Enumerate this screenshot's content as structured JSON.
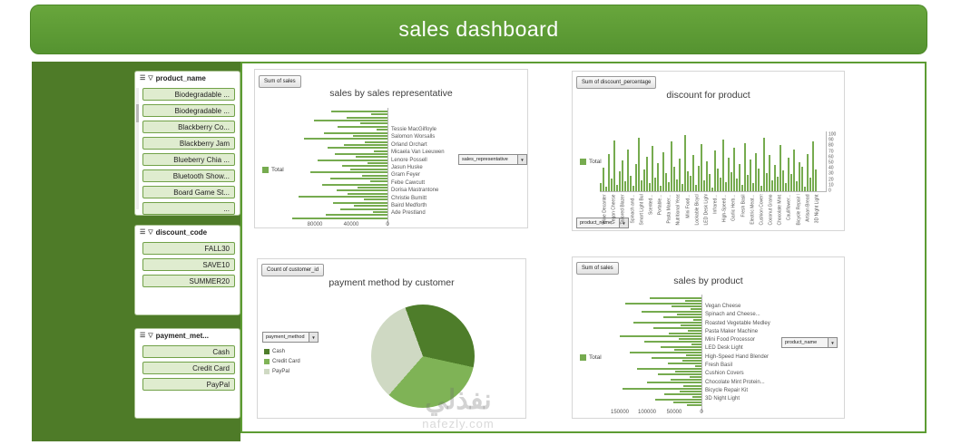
{
  "header": {
    "title": "sales dashboard"
  },
  "watermark": {
    "name": "نفذلي",
    "site": "nafezly.com"
  },
  "icons": {
    "multiselect": "☰",
    "clear_filter": "▽",
    "dropdown_arrow": "▼"
  },
  "colors": {
    "accent_green": "#5d9c33",
    "sidebar_green": "#4e7b28",
    "bar_green": "#76ab4f",
    "slicer_item_fill": "#dfeccf",
    "slicer_item_border": "#71a148",
    "header_gradient_top": "#68a63c",
    "header_gradient_bottom": "#559330"
  },
  "slicers": [
    {
      "title": "product_name",
      "items": [
        "Biodegradable ...",
        "Biodegradable ...",
        "Blackberry Co...",
        "Blackberry Jam",
        "Blueberry Chia ...",
        "Bluetooth Show...",
        "Board Game St...",
        "..."
      ]
    },
    {
      "title": "discount_code",
      "items": [
        "FALL30",
        "SAVE10",
        "SUMMER20"
      ]
    },
    {
      "title": "payment_met...",
      "items": [
        "Cash",
        "Credit Card",
        "PayPal"
      ]
    }
  ],
  "chart_data": [
    {
      "type": "bar",
      "orientation": "horizontal",
      "title": "sales by sales representative",
      "field_button": "Sum of sales",
      "dropdown": "sales_representative",
      "legend": [
        "Total"
      ],
      "axis_labels": [
        "Tessie MacGilfoyle",
        "Salomon Worsalls",
        "Orland Orchart",
        "Micaela Van Leeuwen",
        "Lenore Possell",
        "Jasun Huske",
        "Gram Feyer",
        "Febe Cawcutt",
        "Dorisa Mastrantone",
        "Christie Bumitt",
        "Baird Medforth",
        "Ade Prestland"
      ],
      "xticks": [
        80000,
        40000,
        0
      ],
      "values": [
        62000,
        18000,
        45000,
        81000,
        30000,
        55000,
        12000,
        70000,
        38000,
        92000,
        25000,
        48000,
        66000,
        15000,
        58000,
        35000,
        77000,
        22000,
        50000,
        41000,
        85000,
        28000,
        63000,
        19000,
        72000,
        33000,
        56000,
        44000,
        98000,
        26000,
        60000,
        37000,
        52000,
        16000,
        68000,
        105000
      ]
    },
    {
      "type": "bar",
      "orientation": "vertical",
      "title": "discount for product",
      "field_button": "Sum of discount_percentage",
      "dropdown": "product_name",
      "legend": [
        "Total"
      ],
      "categories": [
        "Wine Decanter",
        "Vegan Cheese",
        "Tailored Blazer",
        "Spinach and...",
        "Smart Light Bulbs",
        "Scented...",
        "Portable...",
        "Pasta Maker...",
        "Nutritional Yeast",
        "Mini Food...",
        "Lockable Bicycle...",
        "LED Desk Light",
        "Infrared...",
        "High-Speed...",
        "Garlic Herb...",
        "Fresh Basil",
        "Electric Meat...",
        "Cushion Covers",
        "Coconut Granola",
        "Chocolate Mint...",
        "Cauliflower...",
        "Bicycle Repair Kit",
        "Artisan Bread",
        "3D Night Light"
      ],
      "yticks": [
        100,
        90,
        80,
        70,
        60,
        50,
        40,
        30,
        20,
        10,
        0
      ],
      "values": [
        15,
        42,
        8,
        67,
        23,
        90,
        12,
        35,
        55,
        18,
        75,
        28,
        10,
        48,
        95,
        20,
        38,
        62,
        14,
        80,
        25,
        50,
        9,
        70,
        32,
        16,
        88,
        44,
        21,
        58,
        13,
        100,
        36,
        27,
        65,
        11,
        46,
        84,
        19,
        53,
        30,
        7,
        72,
        40,
        24,
        92,
        17,
        60,
        34,
        78,
        22,
        49,
        12,
        86,
        29,
        56,
        15,
        68,
        41,
        10,
        95,
        33,
        64,
        20,
        47,
        26,
        82,
        37,
        14,
        59,
        31,
        74,
        18,
        51,
        43,
        8,
        66,
        24,
        89,
        39
      ]
    },
    {
      "type": "pie",
      "title": "payment method by customer",
      "field_button": "Count of customer_id",
      "dropdown": "payment_method",
      "labels": [
        "Cash",
        "Credit Card",
        "PayPal"
      ],
      "values": [
        34,
        33,
        33
      ],
      "colors": [
        "#4e7d2a",
        "#7fb356",
        "#cfd9c3"
      ]
    },
    {
      "type": "bar",
      "orientation": "horizontal",
      "title": "sales by product",
      "field_button": "Sum of sales",
      "dropdown": "product_name",
      "legend": [
        "Total"
      ],
      "axis_labels": [
        "Vegan Cheese",
        "Spinach and Cheese...",
        "Roasted Vegetable Medley",
        "Pasta Maker Machine",
        "Mini Food Processor",
        "LED Desk Light",
        "High-Speed Hand Blender",
        "Fresh Basil",
        "Cushion Covers",
        "Chocolate Mint Protein...",
        "Bicycle Repair Kit",
        "3D Night Light"
      ],
      "xticks": [
        150000,
        100000,
        50000,
        0
      ],
      "values": [
        95000,
        30000,
        140000,
        55000,
        20000,
        110000,
        45000,
        70000,
        15000,
        125000,
        38000,
        88000,
        25000,
        60000,
        150000,
        42000,
        105000,
        18000,
        75000,
        50000,
        132000,
        28000,
        92000,
        35000,
        62000,
        12000,
        118000,
        48000,
        80000,
        22000,
        57000,
        100000,
        33000,
        145000,
        40000,
        68000,
        16000,
        85000,
        52000,
        26000
      ]
    }
  ]
}
